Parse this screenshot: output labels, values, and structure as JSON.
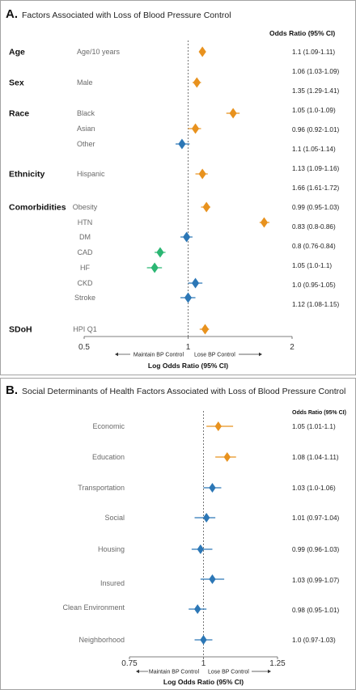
{
  "chart_data": [
    {
      "type": "scatter",
      "panel_label": "A.",
      "title": "Factors Associated with Loss of Blood Pressure Control",
      "or_header": "Odds Ratio (95% CI)",
      "scale": "log",
      "xlim": [
        0.5,
        2
      ],
      "ticks": [
        0.5,
        1,
        2
      ],
      "tick_labels": [
        "0.5",
        "1",
        "2"
      ],
      "reference_value": 1,
      "xlabel": "Log Odds Ratio (95% CI)",
      "left_direction": "Maintain BP Control",
      "right_direction": "Lose BP Control",
      "groups": [
        "Age",
        "Sex",
        "Race",
        "Ethnicity",
        "Comorbidities",
        "SDoH"
      ],
      "rows": [
        {
          "group": "Age",
          "label": "Age/10 years",
          "or": 1.1,
          "ci": [
            1.09,
            1.11
          ],
          "text": "1.1 (1.09-1.11)",
          "color": "#E8921E"
        },
        {
          "group": "Sex",
          "label": "Male",
          "or": 1.06,
          "ci": [
            1.03,
            1.09
          ],
          "text": "1.06 (1.03-1.09)",
          "color": "#E8921E"
        },
        {
          "group": "Race",
          "label": "Black",
          "or": 1.35,
          "ci": [
            1.29,
            1.41
          ],
          "text": "1.35 (1.29-1.41)",
          "color": "#E8921E"
        },
        {
          "group": "Race",
          "label": "Asian",
          "or": 1.05,
          "ci": [
            1.0,
            1.09
          ],
          "text": "1.05 (1.0-1.09)",
          "color": "#E8921E"
        },
        {
          "group": "Race",
          "label": "Other",
          "or": 0.96,
          "ci": [
            0.92,
            1.01
          ],
          "text": "0.96 (0.92-1.01)",
          "color": "#2C77B6"
        },
        {
          "group": "Ethnicity",
          "label": "Hispanic",
          "or": 1.1,
          "ci": [
            1.05,
            1.14
          ],
          "text": "1.1 (1.05-1.14)",
          "color": "#E8921E"
        },
        {
          "group": "Comorbidities",
          "label": "Obesity",
          "or": 1.13,
          "ci": [
            1.09,
            1.16
          ],
          "text": "1.13 (1.09-1.16)",
          "color": "#E8921E"
        },
        {
          "group": "Comorbidities",
          "label": "HTN",
          "or": 1.66,
          "ci": [
            1.61,
            1.72
          ],
          "text": "1.66 (1.61-1.72)",
          "color": "#E8921E"
        },
        {
          "group": "Comorbidities",
          "label": "DM",
          "or": 0.99,
          "ci": [
            0.95,
            1.03
          ],
          "text": "0.99 (0.95-1.03)",
          "color": "#2C77B6"
        },
        {
          "group": "Comorbidities",
          "label": "CAD",
          "or": 0.83,
          "ci": [
            0.8,
            0.86
          ],
          "text": "0.83 (0.8-0.86)",
          "color": "#2BB673"
        },
        {
          "group": "Comorbidities",
          "label": "HF",
          "or": 0.8,
          "ci": [
            0.76,
            0.84
          ],
          "text": "0.8 (0.76-0.84)",
          "color": "#2BB673"
        },
        {
          "group": "Comorbidities",
          "label": "CKD",
          "or": 1.05,
          "ci": [
            1.0,
            1.1
          ],
          "text": "1.05 (1.0-1.1)",
          "color": "#2C77B6"
        },
        {
          "group": "Comorbidities",
          "label": "Stroke",
          "or": 1.0,
          "ci": [
            0.95,
            1.05
          ],
          "text": "1.0 (0.95-1.05)",
          "color": "#2C77B6"
        },
        {
          "group": "SDoH",
          "label": "HPI Q1",
          "or": 1.12,
          "ci": [
            1.08,
            1.15
          ],
          "text": "1.12 (1.08-1.15)",
          "color": "#E8921E"
        }
      ]
    },
    {
      "type": "scatter",
      "panel_label": "B.",
      "title": "Social Determinants of Health Factors Associated with Loss of Blood Pressure Control",
      "or_header": "Odds Ratio (95% CI)",
      "scale": "linear",
      "xlim": [
        0.75,
        1.25
      ],
      "ticks": [
        0.75,
        1,
        1.25
      ],
      "tick_labels": [
        "0.75",
        "1",
        "1.25"
      ],
      "reference_value": 1,
      "xlabel": "Log Odds Ratio (95% CI)",
      "left_direction": "Maintain BP Control",
      "right_direction": "Lose BP Control",
      "groups": [],
      "rows": [
        {
          "label": "Economic",
          "or": 1.05,
          "ci": [
            1.01,
            1.1
          ],
          "text": "1.05 (1.01-1.1)",
          "color": "#E8921E"
        },
        {
          "label": "Education",
          "or": 1.08,
          "ci": [
            1.04,
            1.11
          ],
          "text": "1.08 (1.04-1.11)",
          "color": "#E8921E"
        },
        {
          "label": "Transportation",
          "or": 1.03,
          "ci": [
            1.0,
            1.06
          ],
          "text": "1.03 (1.0-1.06)",
          "color": "#2C77B6"
        },
        {
          "label": "Social",
          "or": 1.01,
          "ci": [
            0.97,
            1.04
          ],
          "text": "1.01 (0.97-1.04)",
          "color": "#2C77B6"
        },
        {
          "label": "Housing",
          "or": 0.99,
          "ci": [
            0.96,
            1.03
          ],
          "text": "0.99 (0.96-1.03)",
          "color": "#2C77B6"
        },
        {
          "label": "Insured",
          "or": 1.03,
          "ci": [
            0.99,
            1.07
          ],
          "text": "1.03 (0.99-1.07)",
          "color": "#2C77B6"
        },
        {
          "label": "Clean Environment",
          "or": 0.98,
          "ci": [
            0.95,
            1.01
          ],
          "text": "0.98 (0.95-1.01)",
          "color": "#2C77B6"
        },
        {
          "label": "Neighborhood",
          "or": 1.0,
          "ci": [
            0.97,
            1.03
          ],
          "text": "1.0 (0.97-1.03)",
          "color": "#2C77B6"
        }
      ]
    }
  ]
}
